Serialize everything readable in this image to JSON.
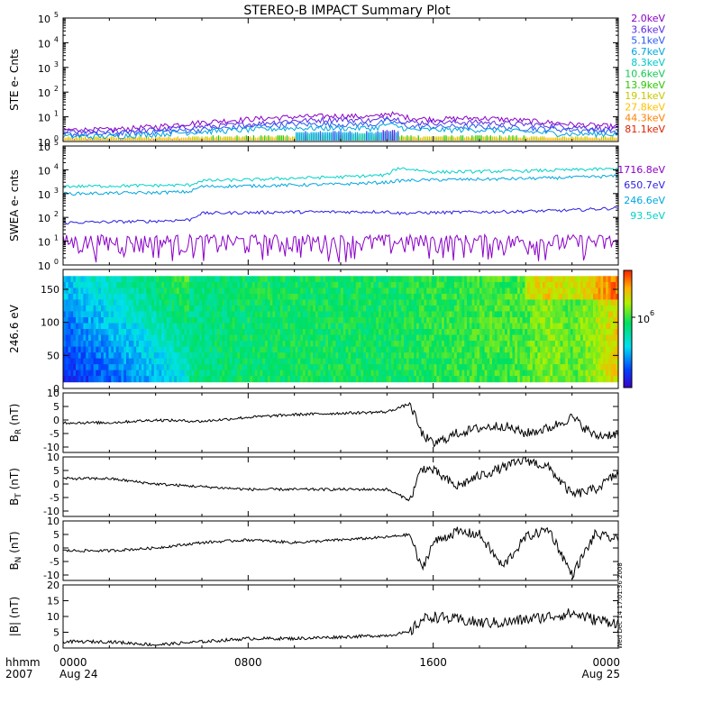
{
  "title": "STEREO-B IMPACT Summary Plot",
  "corner": {
    "hhmm": "hhmm",
    "year": "2007"
  },
  "xaxis": {
    "ticks": [
      {
        "hour": 0,
        "label": "0000",
        "sub": "Aug 24"
      },
      {
        "hour": 8,
        "label": "0800",
        "sub": ""
      },
      {
        "hour": 16,
        "label": "1600",
        "sub": ""
      },
      {
        "hour": 24,
        "label": "0000",
        "sub": "Aug 25"
      }
    ]
  },
  "timestamp": "Wed Dec 14 17:01:36 2008",
  "colors": {
    "ste": [
      "#8b00c8",
      "#5a2be0",
      "#2a5aef",
      "#00a6e0",
      "#00c8c8",
      "#12c850",
      "#28c800",
      "#c8c800",
      "#ffc000",
      "#ff8000",
      "#e02000"
    ],
    "swea": [
      "#8b00c8",
      "#2a1ee0",
      "#00a6e0",
      "#00d2c8"
    ]
  },
  "panels": {
    "ste": {
      "ylabel": "STE e- Cnts",
      "scale": "log",
      "ytick_labels": [
        "10",
        "10",
        "10",
        "10",
        "10",
        "10"
      ],
      "ytick_exponents": [
        "0",
        "1",
        "2",
        "3",
        "4",
        "5"
      ],
      "legend": [
        "2.0keV",
        "3.6keV",
        "5.1keV",
        "6.7keV",
        "8.3keV",
        "10.6keV",
        "13.9keV",
        "19.1keV",
        "27.8keV",
        "44.3keV",
        "81.1keV"
      ]
    },
    "swea": {
      "ylabel": "SWEA e- cnts",
      "scale": "log",
      "ytick_labels": [
        "10",
        "10",
        "10",
        "10",
        "10",
        "10"
      ],
      "ytick_exponents": [
        "0",
        "1",
        "2",
        "3",
        "4",
        "5"
      ],
      "legend": [
        "1716.8eV",
        "650.7eV",
        "246.6eV",
        "93.5eV"
      ]
    },
    "pad": {
      "ylabel": "246.6 eV",
      "ytick_labels": [
        "0",
        "50",
        "100",
        "150"
      ],
      "colorbar_label": "10",
      "colorbar_exp": "6"
    },
    "br": {
      "ylabel": "B",
      "sub": "R",
      "unit": " (nT)",
      "ytick_labels": [
        "-10",
        "-5",
        "0",
        "5",
        "10"
      ]
    },
    "bt": {
      "ylabel": "B",
      "sub": "T",
      "unit": " (nT)",
      "ytick_labels": [
        "-10",
        "-5",
        "0",
        "5",
        "10"
      ]
    },
    "bn": {
      "ylabel": "B",
      "sub": "N",
      "unit": " (nT)",
      "ytick_labels": [
        "-10",
        "-5",
        "0",
        "5",
        "10"
      ]
    },
    "bmag": {
      "ylabel": "|B| (nT)",
      "ytick_labels": [
        "0",
        "5",
        "10",
        "15",
        "20"
      ]
    }
  },
  "chart_data": [
    {
      "type": "line",
      "title": "STEREO-B IMPACT Summary Plot",
      "ylabel": "STE e- Cnts",
      "yscale": "log",
      "ylim": [
        1,
        100000
      ],
      "x_hours": [
        0,
        2,
        4,
        6,
        8,
        10,
        12,
        13.5,
        14,
        15,
        16,
        18,
        20,
        22,
        24
      ],
      "series": [
        {
          "name": "2.0keV",
          "values": [
            3,
            3,
            4,
            6,
            8,
            10,
            11,
            10,
            14,
            9,
            8,
            9,
            7,
            5,
            4
          ]
        },
        {
          "name": "3.6keV",
          "values": [
            2.5,
            2.5,
            3,
            4,
            5,
            7,
            8,
            7,
            10,
            6,
            6,
            6,
            5,
            4,
            3
          ]
        },
        {
          "name": "5.1keV",
          "values": [
            2,
            2,
            2.5,
            3,
            4,
            5,
            5,
            5,
            7,
            4,
            4,
            4,
            3.5,
            3,
            2.5
          ]
        },
        {
          "name": "6.7keV",
          "values": [
            1.6,
            1.6,
            2,
            2.5,
            3,
            3.5,
            3.5,
            3.5,
            5,
            3,
            3,
            3,
            2.5,
            2,
            2
          ]
        }
      ]
    },
    {
      "type": "line",
      "ylabel": "SWEA e- cnts",
      "yscale": "log",
      "ylim": [
        1,
        100000
      ],
      "x_hours": [
        0,
        2,
        4,
        5.5,
        6,
        8,
        10,
        12,
        14,
        14.5,
        16,
        18,
        20,
        22,
        24
      ],
      "series": [
        {
          "name": "1716.8eV",
          "values": [
            5,
            5,
            5,
            5,
            5,
            5,
            5,
            5,
            5,
            5,
            5,
            5,
            5,
            5,
            5
          ]
        },
        {
          "name": "650.7eV",
          "values": [
            60,
            65,
            70,
            80,
            150,
            160,
            170,
            170,
            175,
            150,
            160,
            170,
            180,
            200,
            250
          ]
        },
        {
          "name": "246.6eV",
          "values": [
            1000,
            1050,
            1100,
            1200,
            2000,
            2100,
            2300,
            2500,
            3000,
            3500,
            3800,
            4000,
            4300,
            4800,
            5500
          ]
        },
        {
          "name": "93.5eV",
          "values": [
            2000,
            2100,
            2200,
            2300,
            3500,
            3800,
            4500,
            5000,
            6000,
            12000,
            8000,
            8500,
            9000,
            10000,
            11000
          ]
        }
      ]
    },
    {
      "type": "heatmap",
      "ylabel": "246.6 eV",
      "ylim": [
        0,
        180
      ],
      "x_hours": [
        0,
        3,
        5.5,
        9,
        14,
        16,
        18,
        20,
        21,
        22,
        24
      ],
      "level": [
        0.2,
        0.35,
        0.5,
        0.55,
        0.55,
        0.58,
        0.6,
        0.62,
        0.68,
        0.62,
        0.8
      ],
      "colorbar_ticks": [
        "10^6"
      ]
    },
    {
      "type": "line",
      "ylabel": "B_R (nT)",
      "ylim": [
        -12,
        10
      ],
      "x_hours": [
        0,
        2,
        4,
        6,
        8,
        10,
        12,
        14,
        15,
        15.5,
        16,
        17,
        18,
        19,
        20,
        21,
        22,
        23,
        24
      ],
      "values": [
        -1,
        -1,
        0,
        -0.5,
        1,
        2,
        2.5,
        3,
        6,
        -5,
        -9,
        -5,
        -3,
        -2,
        -5,
        -3,
        1,
        -6,
        -5
      ]
    },
    {
      "type": "line",
      "ylabel": "B_T (nT)",
      "ylim": [
        -12,
        10
      ],
      "x_hours": [
        0,
        2,
        4,
        6,
        8,
        10,
        12,
        14,
        15,
        15.5,
        16,
        17,
        18,
        19,
        20,
        21,
        22,
        23,
        24
      ],
      "values": [
        2,
        2,
        0,
        -1,
        -2,
        -2,
        -2,
        -2,
        -6,
        6,
        5,
        -1,
        3,
        6,
        9,
        6,
        -4,
        -2,
        4
      ]
    },
    {
      "type": "line",
      "ylabel": "B_N (nT)",
      "ylim": [
        -12,
        10
      ],
      "x_hours": [
        0,
        2,
        4,
        6,
        8,
        10,
        12,
        14,
        15,
        15.5,
        16,
        17,
        18,
        19,
        20,
        21,
        22,
        23,
        24
      ],
      "values": [
        -1,
        -1,
        0,
        2,
        3,
        2,
        3,
        4,
        5,
        -8,
        2,
        6,
        5,
        -7,
        4,
        7,
        -10,
        5,
        3
      ]
    },
    {
      "type": "line",
      "ylabel": "|B| (nT)",
      "ylim": [
        0,
        20
      ],
      "x_hours": [
        0,
        2,
        4,
        6,
        8,
        10,
        12,
        14,
        15,
        15.5,
        16,
        17,
        18,
        19,
        20,
        21,
        22,
        23,
        24
      ],
      "values": [
        2,
        2,
        1,
        2,
        3,
        3,
        3.5,
        4,
        5,
        9,
        10,
        9,
        8,
        8,
        9,
        10,
        11,
        9,
        8
      ]
    }
  ]
}
